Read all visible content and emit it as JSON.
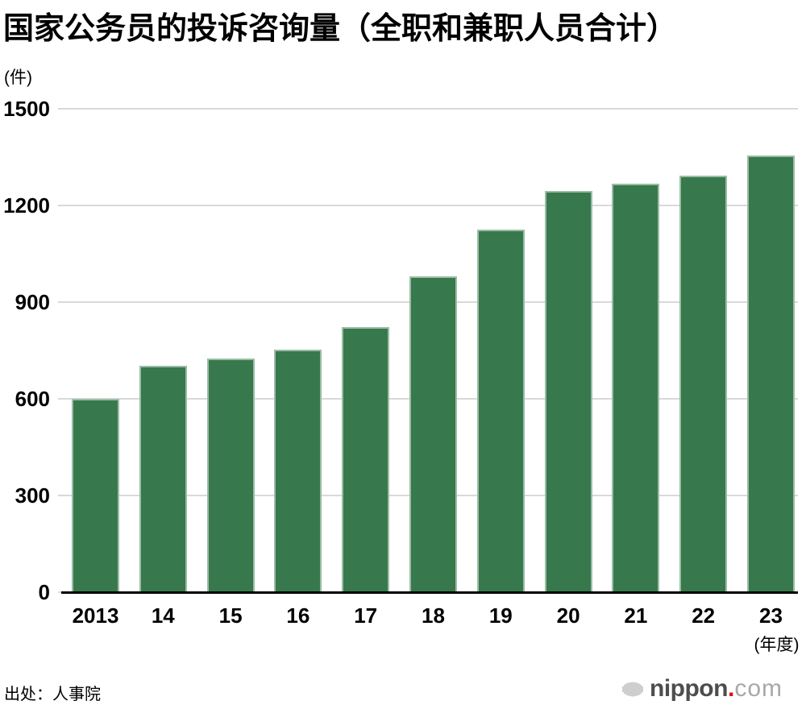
{
  "chart_data": {
    "type": "bar",
    "title": "国家公务员的投诉咨询量（全职和兼职人员合计）",
    "unit_label": "(件)",
    "categories": [
      "2013",
      "14",
      "15",
      "16",
      "17",
      "18",
      "19",
      "20",
      "21",
      "22",
      "23"
    ],
    "values": [
      600,
      704,
      725,
      753,
      822,
      980,
      1125,
      1246,
      1269,
      1294,
      1356
    ],
    "x_axis_suffix": "(年度)",
    "yticks": [
      0,
      300,
      600,
      900,
      1200,
      1500
    ],
    "ylim": [
      0,
      1500
    ],
    "grid": true,
    "legend": "none",
    "colors": {
      "bar": "#37794c",
      "grid": "#d9d9d9",
      "axis": "#000000"
    }
  },
  "footer": {
    "source": "出处：人事院",
    "logo": {
      "icon": "soundwave-bars-icon",
      "name": "nippon",
      "dot": ".",
      "tld": "com",
      "name_color": "#4d4d4d",
      "dot_color": "#e60012",
      "tld_color": "#a8a8a8",
      "icon_color": "#b3b3b3"
    }
  }
}
